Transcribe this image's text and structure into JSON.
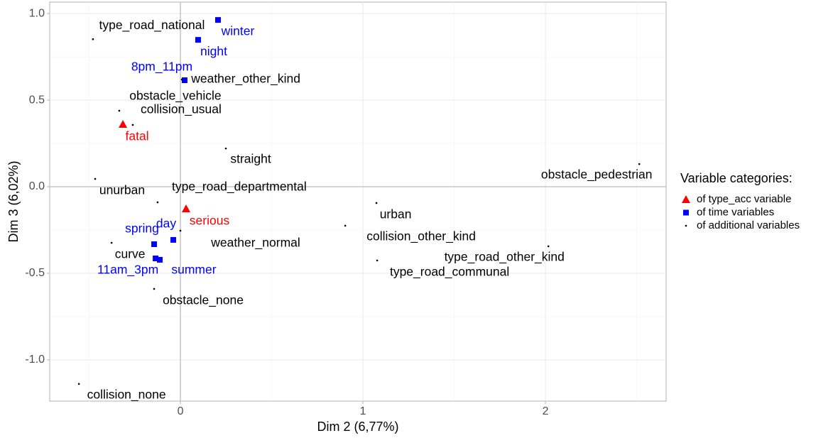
{
  "chart_data": {
    "type": "scatter",
    "x_label": "Dim 2 (6,77%)",
    "y_label": "Dim 3 (6,02%)",
    "legend_title": "Variable categories:",
    "legend_position": "right",
    "grid": true,
    "xlim": [
      -0.716,
      2.661
    ],
    "ylim": [
      -1.238,
      1.066
    ],
    "xticks": [
      0,
      1,
      2
    ],
    "yticks": [
      {
        "value": -1,
        "label": "-1.0"
      },
      {
        "value": -0.5,
        "label": "-0.5"
      },
      {
        "value": 0,
        "label": "0.0"
      },
      {
        "value": 0.5,
        "label": "0.5"
      },
      {
        "value": 1,
        "label": "1.0"
      }
    ],
    "series": [
      {
        "name": "of type_acc variable",
        "color": "#ff0000",
        "marker": "triangle",
        "labels": [
          "fatal",
          "serious"
        ],
        "x": [
          -0.315,
          0.031
        ],
        "y": [
          0.361,
          -0.127
        ]
      },
      {
        "name": "of time variables",
        "color": "#0000ff",
        "marker": "square",
        "labels": [
          "winter",
          "night",
          "8pm_11pm",
          "day",
          "spring",
          "11am_3pm",
          "summer"
        ],
        "x": [
          0.206,
          0.097,
          0.023,
          -0.039,
          -0.144,
          -0.136,
          -0.113
        ],
        "y": [
          0.963,
          0.848,
          0.615,
          -0.307,
          -0.332,
          -0.414,
          -0.422
        ]
      },
      {
        "name": "of additional variables",
        "color": "#000000",
        "marker": "dot",
        "labels": [
          "type_road_national",
          "weather_other_kind",
          "obstacle_vehicle",
          "collision_usual",
          "straight",
          "obstacle_pedestrian",
          "unurban",
          "type_road_departmental",
          "urban",
          "collision_other_kind",
          "weather_normal",
          "curve",
          "type_road_other_kind",
          "type_road_communal",
          "obstacle_none",
          "collision_none"
        ],
        "x": [
          -0.479,
          0.008,
          -0.335,
          -0.261,
          0.249,
          2.514,
          -0.467,
          -0.125,
          1.074,
          0.903,
          0.0,
          -0.377,
          2.016,
          1.078,
          -0.144,
          -0.556
        ],
        "y": [
          0.852,
          0.619,
          0.439,
          0.357,
          0.221,
          0.131,
          0.045,
          -0.09,
          -0.094,
          -0.225,
          -0.254,
          -0.324,
          -0.344,
          -0.426,
          -0.59,
          -1.139
        ]
      }
    ]
  }
}
